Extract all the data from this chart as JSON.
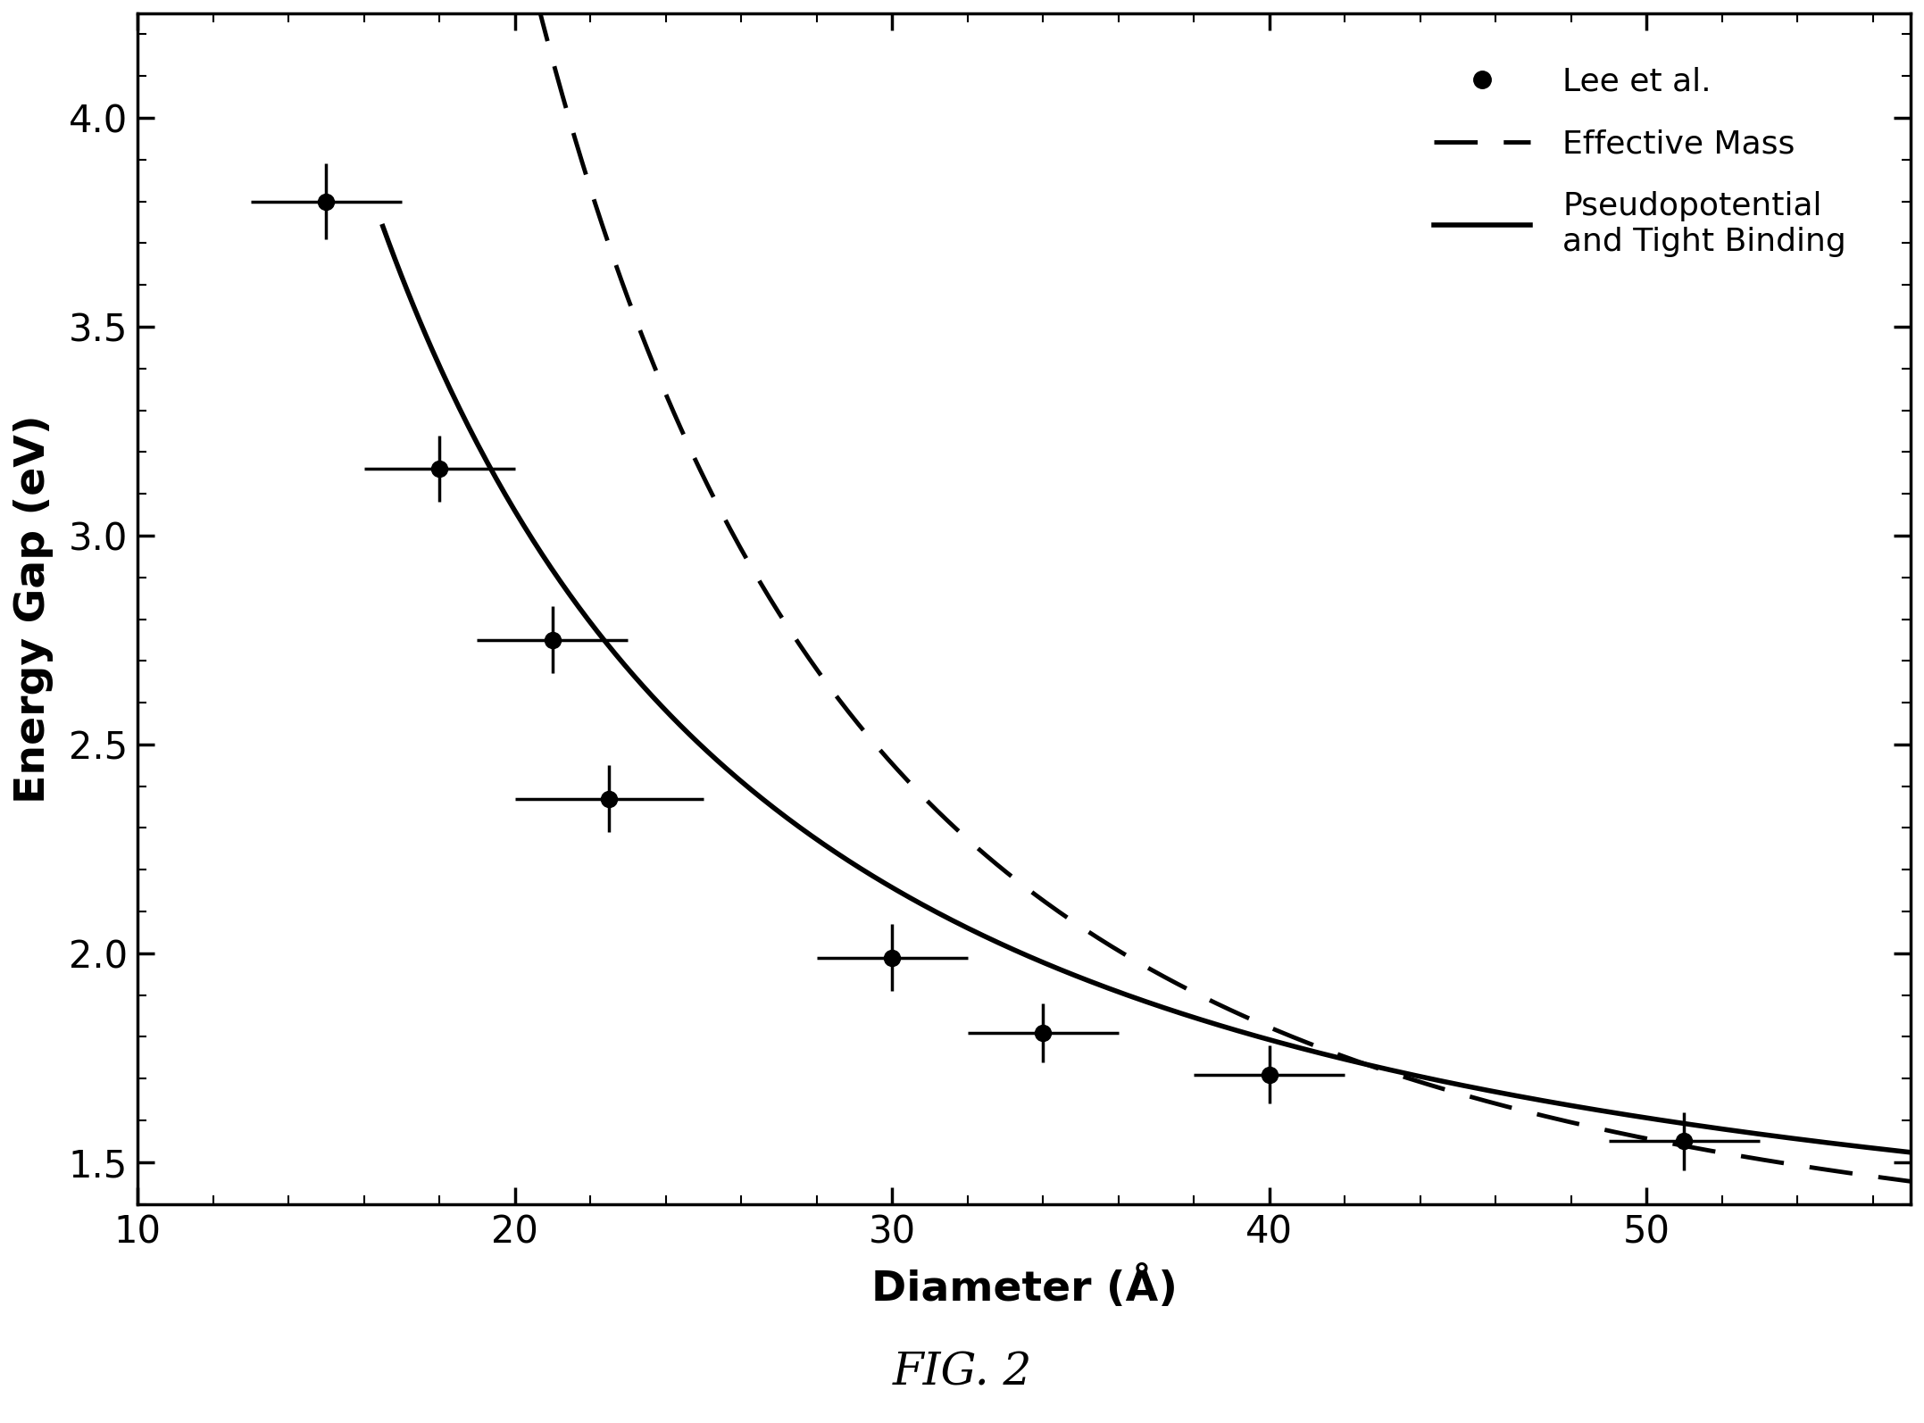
{
  "title": "FIG. 2",
  "xlabel": "Diameter (Å)",
  "ylabel": "Energy Gap (eV)",
  "xlim": [
    10,
    57
  ],
  "ylim": [
    1.4,
    4.25
  ],
  "xticks": [
    10,
    20,
    30,
    40,
    50
  ],
  "yticks": [
    1.5,
    2.0,
    2.5,
    3.0,
    3.5,
    4.0
  ],
  "data_points": {
    "x": [
      15.0,
      18.0,
      21.0,
      22.5,
      30.0,
      34.0,
      40.0,
      51.0
    ],
    "y": [
      3.8,
      3.16,
      2.75,
      2.37,
      1.99,
      1.81,
      1.71,
      1.55
    ],
    "xerr": [
      2.0,
      2.0,
      2.0,
      2.5,
      2.0,
      2.0,
      2.0,
      2.0
    ],
    "yerr": [
      0.09,
      0.08,
      0.08,
      0.08,
      0.08,
      0.07,
      0.07,
      0.07
    ]
  },
  "solid_curve": {
    "Eg_bulk": 1.17,
    "A": 228.0,
    "n": 1.6,
    "d_start": 16.5,
    "d_end": 57
  },
  "dashed_curve": {
    "Eg_bulk": 1.17,
    "A": 3800.0,
    "n": 2.35,
    "d_start": 13.5,
    "d_end": 57
  },
  "legend_labels": [
    "Lee et al.",
    "Effective Mass",
    "Pseudopotential\nand Tight Binding"
  ],
  "background_color": "#ffffff",
  "data_color": "#000000",
  "solid_line_color": "#000000",
  "dashed_line_color": "#000000",
  "figsize": [
    21.55,
    15.94
  ],
  "dpi": 100
}
